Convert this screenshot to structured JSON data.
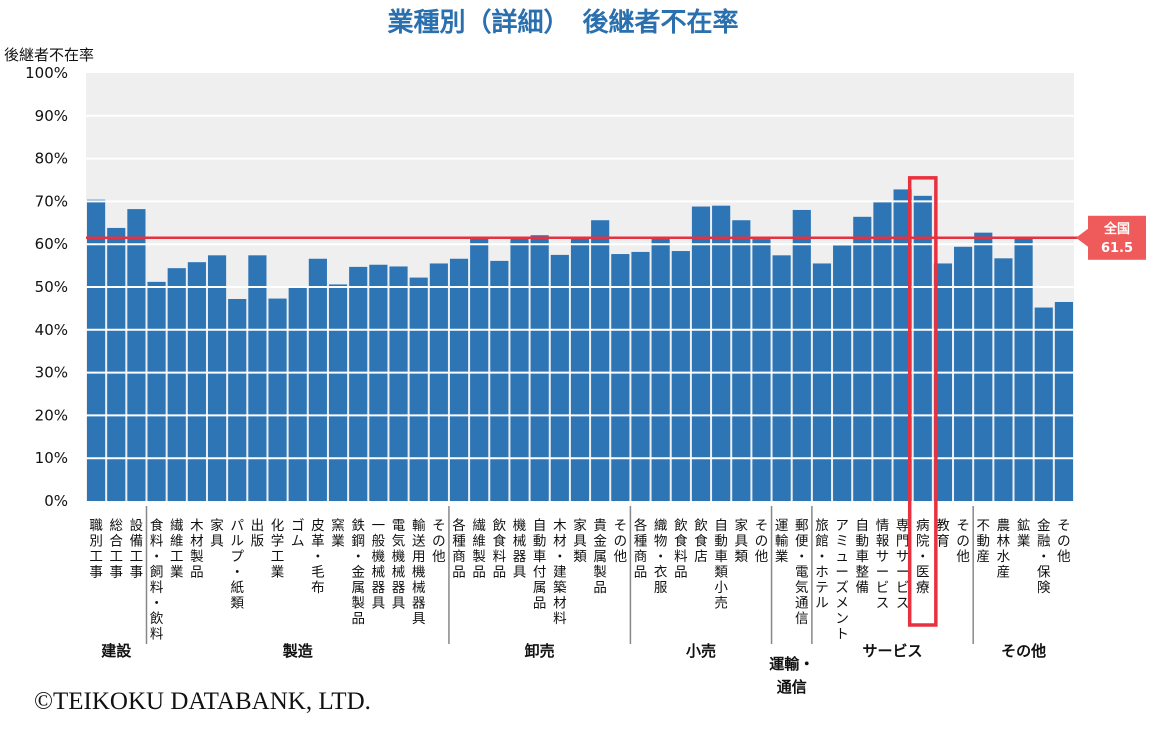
{
  "chart_data": {
    "type": "bar",
    "title": "業種別（詳細）　後継者不在率",
    "ylabel": "後継者不在率",
    "ylim": [
      0,
      100
    ],
    "yticks": [
      "0%",
      "10%",
      "20%",
      "30%",
      "40%",
      "50%",
      "60%",
      "70%",
      "80%",
      "90%",
      "100%"
    ],
    "grid": true,
    "bar_color": "#2e75b6",
    "background_color": "#efefef",
    "reference": {
      "label_top": "全国",
      "label_value": "61.5",
      "value": 61.5,
      "color": "#e8313f"
    },
    "highlight_index": 41,
    "highlight_color": "#e8313f",
    "categories": [
      "職別工事",
      "総合工事",
      "設備工事",
      "食料・飼料・飲料",
      "繊維工業",
      "木材製品",
      "家具",
      "パルプ・紙類",
      "出版",
      "化学工業",
      "ゴム",
      "皮革・毛布",
      "窯業",
      "鉄鋼・金属製品",
      "一般機械器具",
      "電気機械器具",
      "輸送用機械器具",
      "その他",
      "各種商品",
      "繊維製品",
      "飲食料品",
      "機械器具",
      "自動車付属品",
      "木材・建築材料",
      "家具類",
      "貴金属製品",
      "その他",
      "各種商品",
      "織物・衣服",
      "飲食料品",
      "飲食店",
      "自動車類小売",
      "家具類",
      "その他",
      "運輸業",
      "郵便・電気通信",
      "旅館・ホテル",
      "アミューズメント",
      "自動車整備",
      "情報サービス",
      "専門サービス",
      "病院・医療",
      "教育",
      "その他",
      "不動産",
      "農林水産",
      "鉱業",
      "金融・保険",
      "その他"
    ],
    "values": [
      70.4,
      63.8,
      68.2,
      51.2,
      54.4,
      55.8,
      57.4,
      47.2,
      57.4,
      47.3,
      50.0,
      56.6,
      50.6,
      54.7,
      55.2,
      54.8,
      52.2,
      55.5,
      56.6,
      61.8,
      56.1,
      61.7,
      62.1,
      57.5,
      61.7,
      65.6,
      57.7,
      58.2,
      61.7,
      58.4,
      68.8,
      69.0,
      65.6,
      61.2,
      57.4,
      68.0,
      55.5,
      59.7,
      66.4,
      70.1,
      72.8,
      71.3,
      55.5,
      59.4,
      62.7,
      56.7,
      61.8,
      45.2,
      46.5
    ],
    "groups": [
      {
        "name": "建設",
        "start": 0,
        "end": 2
      },
      {
        "name": "製造",
        "start": 3,
        "end": 17
      },
      {
        "name": "卸売",
        "start": 18,
        "end": 26
      },
      {
        "name": "小売",
        "start": 27,
        "end": 33
      },
      {
        "name": "運輸・通信",
        "start": 34,
        "end": 35
      },
      {
        "name": "サービス",
        "start": 36,
        "end": 43
      },
      {
        "name": "その他",
        "start": 44,
        "end": 48
      }
    ]
  },
  "footer": {
    "copyright": "©TEIKOKU DATABANK, LTD."
  }
}
